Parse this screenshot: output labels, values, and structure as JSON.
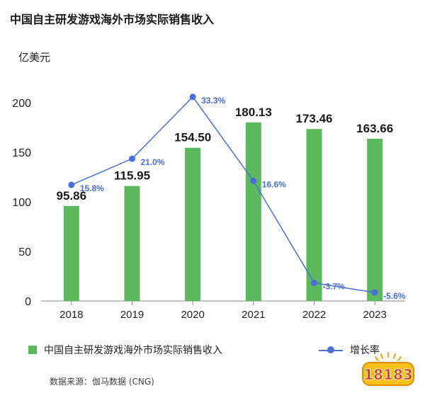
{
  "title": "中国自主研发游戏海外市场实际销售收入",
  "unit": "亿美元",
  "legend": {
    "bar": "中国自主研发游戏海外市场实际销售收入",
    "line": "增长率"
  },
  "source": "数据来源：伽马数据 (CNG)",
  "logo_text": "18183",
  "colors": {
    "bar": "#5cb85c",
    "line": "#4a6fd8",
    "bar_label": "#1a1a1a",
    "rate_label": "#4a6fd8"
  },
  "chart_data": {
    "type": "bar",
    "categories": [
      "2018",
      "2019",
      "2020",
      "2021",
      "2022",
      "2023"
    ],
    "series": [
      {
        "name": "中国自主研发游戏海外市场实际销售收入",
        "values": [
          95.86,
          115.95,
          154.5,
          180.13,
          173.46,
          163.66
        ],
        "labels": [
          "95.86",
          "115.95",
          "154.50",
          "180.13",
          "173.46",
          "163.66"
        ]
      },
      {
        "name": "增长率",
        "type": "line",
        "values": [
          15.8,
          21.0,
          33.3,
          16.6,
          -3.7,
          -5.6
        ],
        "labels": [
          "15.8%",
          "21.0%",
          "33.3%",
          "16.6%",
          "-3.7%",
          "-5.6%"
        ]
      }
    ],
    "yticks": [
      "0",
      "50",
      "100",
      "150",
      "200"
    ],
    "ylim": [
      0,
      200
    ],
    "ylabel": "亿美元"
  }
}
